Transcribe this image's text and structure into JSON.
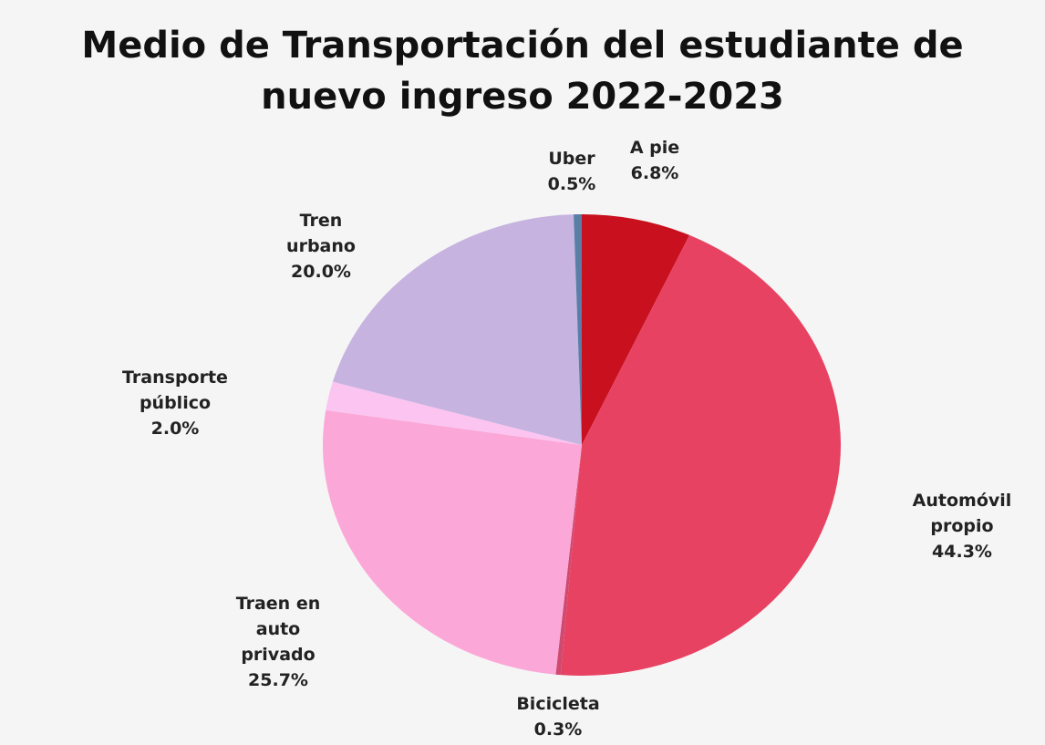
{
  "chart_data": {
    "type": "pie",
    "title": "Medio de Transportación del estudiante de nuevo ingreso 2022-2023",
    "categories": [
      "A pie",
      "Automóvil propio",
      "Bicicleta",
      "Traen en auto privado",
      "Transporte público",
      "Tren urbano",
      "Uber"
    ],
    "values": [
      6.8,
      44.3,
      0.3,
      25.7,
      2.0,
      20.0,
      0.5
    ],
    "value_labels": [
      "6.8%",
      "44.3%",
      "0.3%",
      "25.7%",
      "2.0%",
      "20.0%",
      "0.5%"
    ],
    "colors": [
      "#c8101e",
      "#e84262",
      "#d04a70",
      "#fba8d8",
      "#fcc4f0",
      "#c6b3e0",
      "#5a7ea8"
    ]
  }
}
